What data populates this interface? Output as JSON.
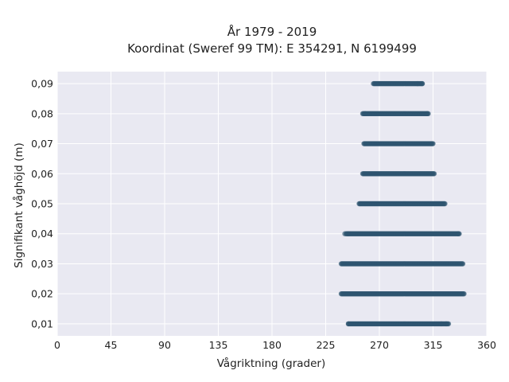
{
  "chart_data": {
    "type": "scatter",
    "title_line1": "År 1979 - 2019",
    "title_line2": "Koordinat (Sweref 99 TM): E 354291, N 6199499",
    "xlabel": "Vågriktning (grader)",
    "ylabel": "Signifikant våghöjd (m)",
    "xlim": [
      0,
      360
    ],
    "ylim": [
      0.006,
      0.094
    ],
    "x_ticks": [
      0,
      45,
      90,
      135,
      180,
      225,
      270,
      315,
      360
    ],
    "x_tick_labels": [
      "0",
      "45",
      "90",
      "135",
      "180",
      "225",
      "270",
      "315",
      "360"
    ],
    "y_ticks": [
      0.01,
      0.02,
      0.03,
      0.04,
      0.05,
      0.06,
      0.07,
      0.08,
      0.09
    ],
    "y_tick_labels": [
      "0,01",
      "0,02",
      "0,03",
      "0,04",
      "0,05",
      "0,06",
      "0,07",
      "0,08",
      "0,09"
    ],
    "grid": true,
    "plot_background": "#e9e9f2",
    "grid_color": "#ffffff",
    "marker_color": "#2f5570",
    "bands": [
      {
        "y": 0.09,
        "x_min": 265,
        "x_max": 306,
        "x_outliers": [
          302,
          306
        ]
      },
      {
        "y": 0.08,
        "x_min": 256,
        "x_max": 311,
        "x_outliers": [
          258,
          310
        ]
      },
      {
        "y": 0.07,
        "x_min": 257,
        "x_max": 315,
        "x_outliers": []
      },
      {
        "y": 0.06,
        "x_min": 256,
        "x_max": 316,
        "x_outliers": []
      },
      {
        "y": 0.05,
        "x_min": 253,
        "x_max": 325,
        "x_outliers": []
      },
      {
        "y": 0.04,
        "x_min": 242,
        "x_max": 337,
        "x_outliers": [
          241,
          244,
          336
        ]
      },
      {
        "y": 0.03,
        "x_min": 238,
        "x_max": 340,
        "x_outliers": []
      },
      {
        "y": 0.02,
        "x_min": 238,
        "x_max": 341,
        "x_outliers": []
      },
      {
        "y": 0.01,
        "x_min": 244,
        "x_max": 328,
        "x_outliers": [
          244,
          322,
          326
        ]
      }
    ]
  }
}
